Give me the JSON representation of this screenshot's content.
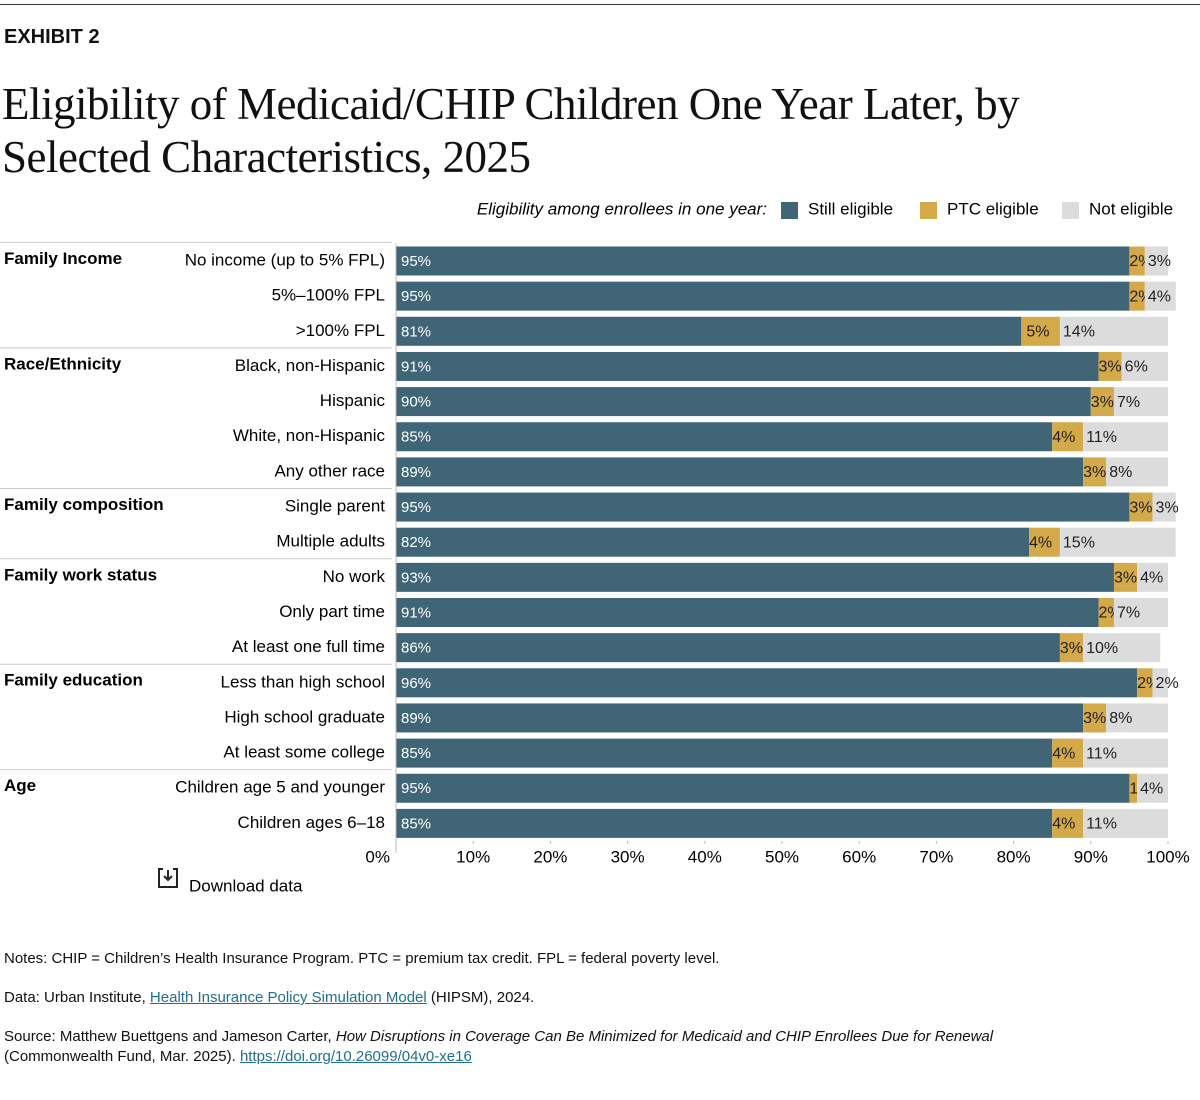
{
  "exhibit": "EXHIBIT 2",
  "chart_data": {
    "type": "stacked-bar",
    "title": "Eligibility of Medicaid/CHIP Children One Year Later, by Selected Characteristics, 2025",
    "legend_title": "Eligibility among enrollees in one year:",
    "groups": [
      {
        "name": "Family Income",
        "categories": [
          "No income (up to 5% FPL)",
          "5%–100% FPL",
          ">100% FPL"
        ]
      },
      {
        "name": "Race/Ethnicity",
        "categories": [
          "Black, non-Hispanic",
          "Hispanic",
          "White, non-Hispanic",
          "Any other race"
        ]
      },
      {
        "name": "Family composition",
        "categories": [
          "Single parent",
          "Multiple adults"
        ]
      },
      {
        "name": "Family work status",
        "categories": [
          "No work",
          "Only part time",
          "At least one full time"
        ]
      },
      {
        "name": "Family education",
        "categories": [
          "Less than high school",
          "High school graduate",
          "At least some college"
        ]
      },
      {
        "name": "Age",
        "categories": [
          "Children age 5 and younger",
          "Children ages 6–18"
        ]
      }
    ],
    "series": [
      {
        "name": "Still eligible",
        "color": "#3f6577",
        "values": [
          95,
          95,
          81,
          91,
          90,
          85,
          89,
          95,
          82,
          93,
          91,
          86,
          96,
          89,
          85,
          95,
          85
        ],
        "value_labels": [
          "95%",
          "95%",
          "81%",
          "91%",
          "90%",
          "85%",
          "89%",
          "95%",
          "82%",
          "93%",
          "91%",
          "86%",
          "96%",
          "89%",
          "85%",
          "95%",
          "85%"
        ]
      },
      {
        "name": "PTC eligible",
        "color": "#d4a94a",
        "values": [
          2,
          2,
          5,
          3,
          3,
          4,
          3,
          3,
          4,
          3,
          2,
          3,
          2,
          3,
          4,
          1,
          4
        ],
        "value_labels": [
          "2%",
          "2%",
          "5%",
          "3%",
          "3%",
          "4%",
          "3%",
          "3%",
          "4%",
          "3%",
          "2%",
          "3%",
          "2%",
          "3%",
          "4%",
          "1%",
          "4%"
        ]
      },
      {
        "name": "Not eligible",
        "color": "#dcdcdc",
        "values": [
          3,
          4,
          14,
          6,
          7,
          11,
          8,
          3,
          15,
          4,
          7,
          10,
          2,
          8,
          11,
          4,
          11
        ],
        "value_labels": [
          "3%",
          "4%",
          "14%",
          "6%",
          "7%",
          "11%",
          "8%",
          "3%",
          "15%",
          "4%",
          "7%",
          "10%",
          "2%",
          "8%",
          "11%",
          "4%",
          "11%"
        ]
      }
    ],
    "xlim": [
      0,
      100
    ],
    "xticks": [
      {
        "value": 0,
        "label": "0%"
      },
      {
        "value": 10,
        "label": "10%"
      },
      {
        "value": 20,
        "label": "20%"
      },
      {
        "value": 30,
        "label": "30%"
      },
      {
        "value": 40,
        "label": "40%"
      },
      {
        "value": 50,
        "label": "50%"
      },
      {
        "value": 60,
        "label": "60%"
      },
      {
        "value": 70,
        "label": "70%"
      },
      {
        "value": 80,
        "label": "80%"
      },
      {
        "value": 90,
        "label": "90%"
      },
      {
        "value": 100,
        "label": "100%"
      }
    ]
  },
  "download": "Download data",
  "notes": "Notes: CHIP = Children’s Health Insurance Program. PTC = premium tax credit. FPL = federal poverty level.",
  "data_line": {
    "prefix": "Data: Urban Institute,",
    "link": "Health Insurance Policy Simulation Model",
    "suffix": "(HIPSM), 2024."
  },
  "source": {
    "prefix": "Source: Matthew Buettgens and Jameson Carter,",
    "title": "How Disruptions in Coverage Can Be Minimized for Medicaid and CHIP Enrollees Due for Renewal",
    "suffix": "(Commonwealth Fund, Mar. 2025).",
    "link": "https://doi.org/10.26099/04v0-xe16"
  }
}
